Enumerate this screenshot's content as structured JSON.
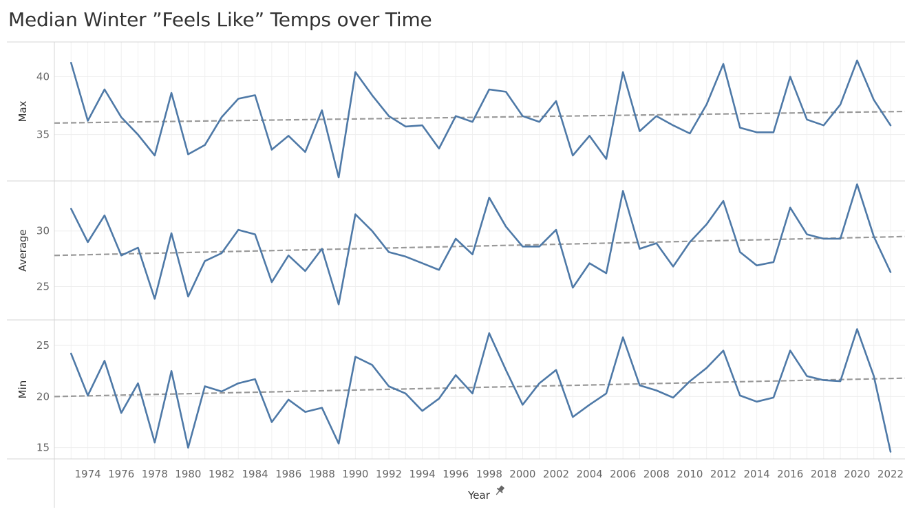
{
  "chart_data": {
    "type": "line",
    "title": "Median Winter ”Feels Like” Temps over Time",
    "xlabel": "Year",
    "xlabel_icon": "pin-icon",
    "x": [
      1973,
      1974,
      1975,
      1976,
      1977,
      1978,
      1979,
      1980,
      1981,
      1982,
      1983,
      1984,
      1985,
      1986,
      1987,
      1988,
      1989,
      1990,
      1991,
      1992,
      1993,
      1994,
      1995,
      1996,
      1997,
      1998,
      1999,
      2000,
      2001,
      2002,
      2003,
      2004,
      2005,
      2006,
      2007,
      2008,
      2009,
      2010,
      2011,
      2012,
      2013,
      2014,
      2015,
      2016,
      2017,
      2018,
      2019,
      2020,
      2021,
      2022
    ],
    "xticks": [
      1974,
      1976,
      1978,
      1980,
      1982,
      1984,
      1986,
      1988,
      1990,
      1992,
      1994,
      1996,
      1998,
      2000,
      2002,
      2004,
      2006,
      2008,
      2010,
      2012,
      2014,
      2016,
      2018,
      2020,
      2022
    ],
    "xlim": [
      1972,
      2022.2
    ],
    "line_color": "#4e79a7",
    "trend_color": "#999999",
    "panels": [
      {
        "name": "Max",
        "ylim": [
          31,
          43
        ],
        "yticks": [
          35,
          40
        ],
        "values": [
          41.2,
          36.2,
          38.9,
          36.5,
          35.0,
          33.2,
          38.6,
          33.3,
          34.1,
          36.5,
          38.1,
          38.4,
          33.7,
          34.9,
          33.5,
          37.1,
          31.3,
          40.4,
          38.4,
          36.6,
          35.7,
          35.8,
          33.8,
          36.6,
          36.1,
          38.9,
          38.7,
          36.6,
          36.1,
          37.9,
          33.2,
          34.9,
          32.9,
          40.4,
          35.3,
          36.6,
          35.8,
          35.1,
          37.6,
          41.1,
          35.6,
          35.2,
          35.2,
          40.0,
          36.3,
          35.8,
          37.6,
          41.4,
          38.0,
          35.8
        ],
        "trend": [
          36.0,
          37.0
        ]
      },
      {
        "name": "Average",
        "ylim": [
          22,
          34.5
        ],
        "yticks": [
          25,
          30
        ],
        "values": [
          32.0,
          29.0,
          31.4,
          27.8,
          28.5,
          23.9,
          29.8,
          24.1,
          27.3,
          28.0,
          30.1,
          29.7,
          25.4,
          27.8,
          26.4,
          28.4,
          23.4,
          31.5,
          30.0,
          28.1,
          27.7,
          27.1,
          26.5,
          29.3,
          27.9,
          33.0,
          30.4,
          28.6,
          28.6,
          30.1,
          24.9,
          27.1,
          26.2,
          33.6,
          28.4,
          28.9,
          26.8,
          29.0,
          30.6,
          32.7,
          28.1,
          26.9,
          27.2,
          32.1,
          29.7,
          29.3,
          29.3,
          34.2,
          29.5,
          26.3
        ],
        "trend": [
          27.8,
          29.5
        ]
      },
      {
        "name": "Min",
        "ylim": [
          13.9,
          27.5
        ],
        "yticks": [
          15,
          20,
          25
        ],
        "values": [
          24.2,
          20.1,
          23.5,
          18.4,
          21.3,
          15.5,
          22.5,
          15.0,
          21.0,
          20.5,
          21.3,
          21.7,
          17.5,
          19.7,
          18.5,
          18.9,
          15.4,
          23.9,
          23.1,
          21.0,
          20.3,
          18.6,
          19.8,
          22.1,
          20.3,
          26.2,
          22.6,
          19.2,
          21.3,
          22.6,
          18.0,
          19.2,
          20.3,
          25.8,
          21.1,
          20.6,
          19.9,
          21.5,
          22.8,
          24.5,
          20.1,
          19.5,
          19.9,
          24.5,
          22.0,
          21.6,
          21.5,
          26.6,
          22.0,
          14.6
        ],
        "trend": [
          20.0,
          21.8
        ]
      }
    ]
  }
}
